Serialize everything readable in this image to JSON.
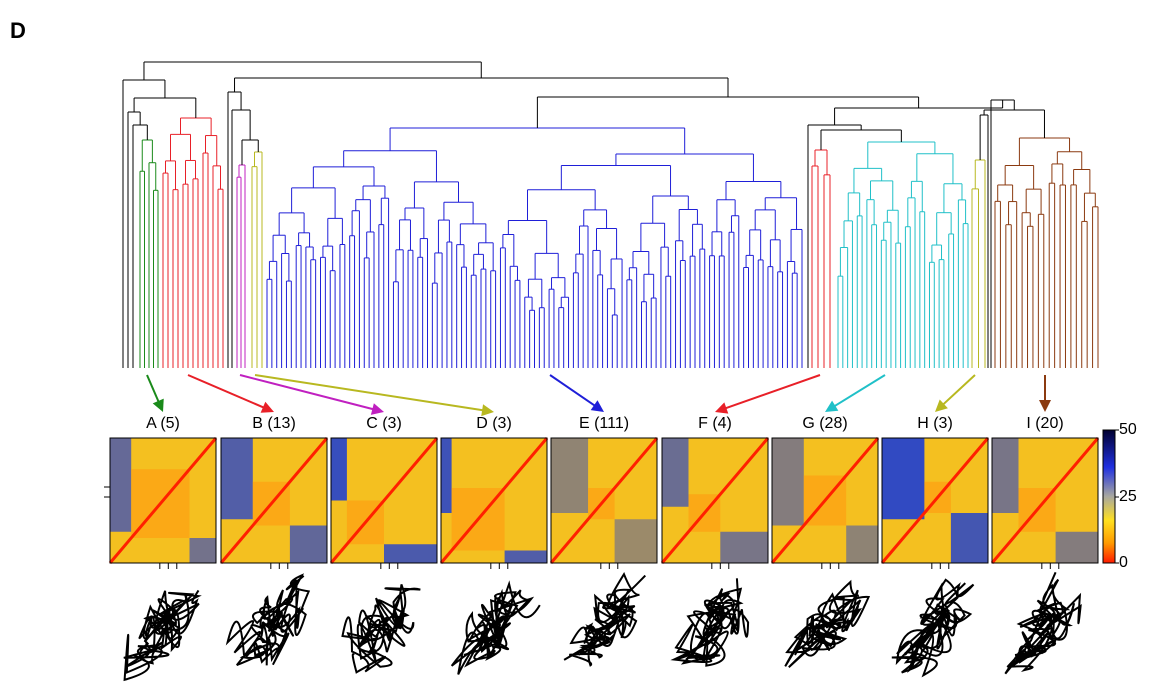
{
  "panel_label": "D",
  "clusters": [
    {
      "label": "A (5)",
      "color": "#1a8a1a"
    },
    {
      "label": "B (13)",
      "color": "#e82028"
    },
    {
      "label": "C (3)",
      "color": "#c020c0"
    },
    {
      "label": "D (3)",
      "color": "#b8b820"
    },
    {
      "label": "E (111)",
      "color": "#1f1fd8"
    },
    {
      "label": "F (4)",
      "color": "#e82028"
    },
    {
      "label": "G (28)",
      "color": "#20c0c8"
    },
    {
      "label": "H (3)",
      "color": "#b8b820"
    },
    {
      "label": "I (20)",
      "color": "#8b3a10"
    }
  ],
  "colorbar": {
    "ticks": [
      "50",
      "25",
      "0"
    ]
  }
}
